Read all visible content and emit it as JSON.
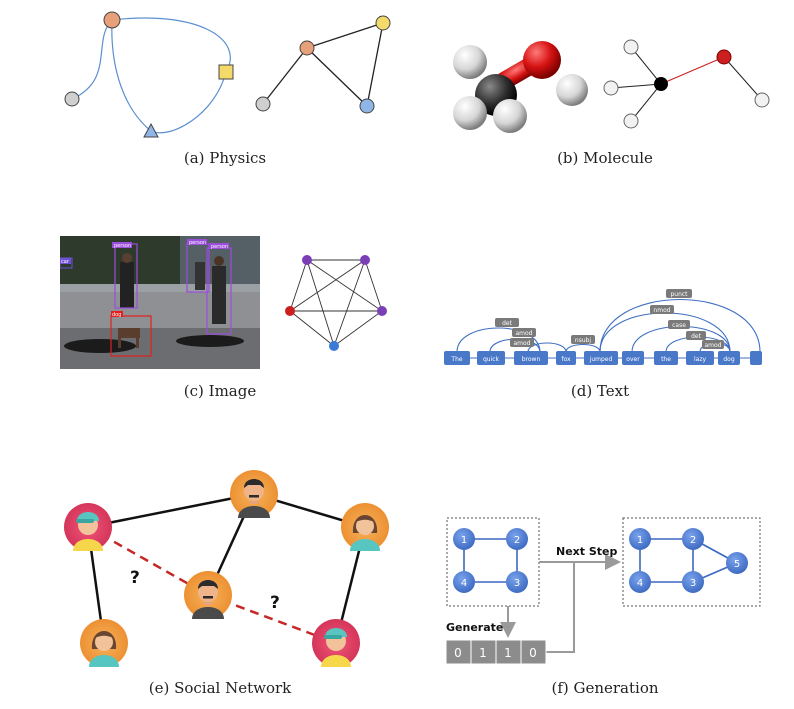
{
  "captions": {
    "a": "(a)  Physics",
    "b": "(b)  Molecule",
    "c": "(c)  Image",
    "d": "(d)  Text",
    "e": "(e)  Social Network",
    "f": "(f)  Generation"
  },
  "image_panel": {
    "boxes": [
      "person",
      "person",
      "person",
      "car",
      "dog"
    ]
  },
  "text_panel": {
    "words": [
      "The",
      "quick",
      "brown",
      "fox",
      "jumped",
      "over",
      "the",
      "lazy",
      "dog",
      ""
    ],
    "arcs": [
      "det",
      "amod",
      "amod",
      "nsubj",
      "punct",
      "nmod",
      "case",
      "det",
      "amod"
    ]
  },
  "social_panel": {
    "unknown_marks": [
      "?",
      "?"
    ]
  },
  "generation_panel": {
    "left_nodes": [
      "1",
      "2",
      "4",
      "3"
    ],
    "right_nodes": [
      "1",
      "2",
      "5",
      "4",
      "3"
    ],
    "next_step_label": "Next Step",
    "generate_label": "Generate",
    "bits": [
      "0",
      "1",
      "1",
      "0"
    ]
  },
  "colors": {
    "node_orange": "#e8a07a",
    "node_yellow": "#f4da6a",
    "node_gray": "#cfcfcf",
    "node_blue": "#8fb6e6",
    "node_purple": "#7b3fb5",
    "node_red": "#cc1f1f",
    "text_blue": "#4a78c9",
    "gen_blue": "#4f7fd3"
  }
}
